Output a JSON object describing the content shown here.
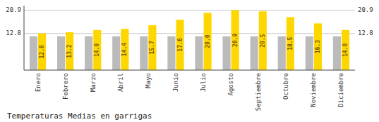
{
  "chart_data": {
    "type": "bar",
    "title": "Temperaturas Medias en garrigas",
    "categories": [
      "Enero",
      "Febrero",
      "Marzo",
      "Abril",
      "Mayo",
      "Junio",
      "Julio",
      "Agosto",
      "Septiembre",
      "Octubre",
      "Noviembre",
      "Diciembre"
    ],
    "series": [
      {
        "color": "#BBBBBB",
        "values": [
          11.8,
          11.8,
          11.8,
          11.8,
          11.8,
          11.8,
          11.8,
          11.8,
          11.8,
          11.8,
          11.8,
          11.8
        ]
      },
      {
        "color": "#FFD700",
        "values": [
          12.8,
          13.2,
          14.0,
          14.4,
          15.7,
          17.6,
          20.0,
          20.9,
          20.5,
          18.5,
          16.3,
          14.0
        ],
        "value_labels": [
          "12.8",
          "13.2",
          "14.0",
          "14.4",
          "15.7",
          "17.6",
          "20.0",
          "20.9",
          "20.5",
          "18.5",
          "16.3",
          "14.0"
        ],
        "data_labels": true
      }
    ],
    "ylim": [
      0,
      22.5
    ],
    "yticks": [
      12.8,
      20.9
    ],
    "grid": true
  }
}
